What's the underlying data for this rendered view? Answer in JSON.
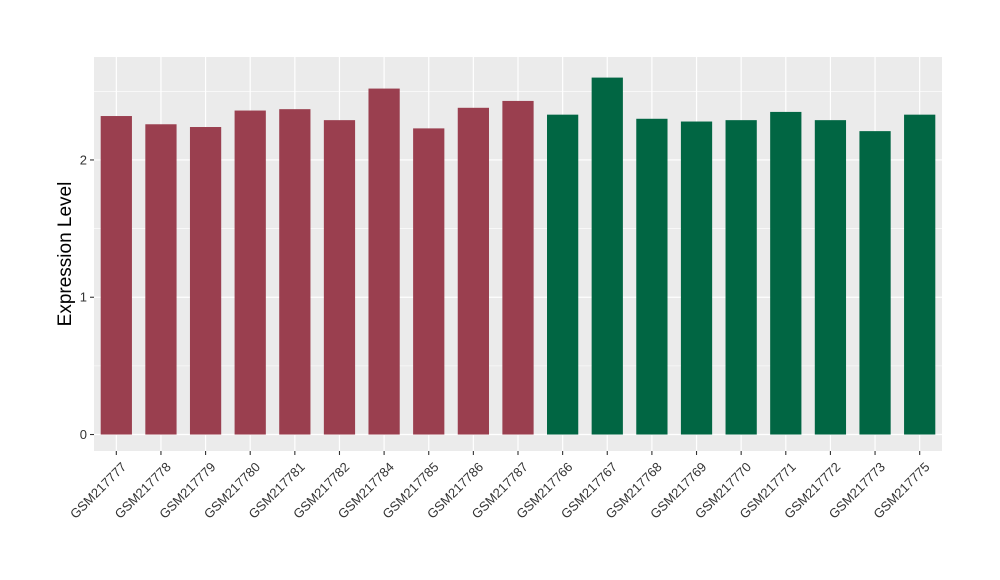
{
  "chart_data": {
    "type": "bar",
    "title": "",
    "xlabel": "",
    "ylabel": "Expression Level",
    "ylim": [
      -0.12,
      2.75
    ],
    "y_ticks": [
      0,
      1,
      2
    ],
    "grid": true,
    "legend": "none",
    "categories": [
      "GSM217777",
      "GSM217778",
      "GSM217779",
      "GSM217780",
      "GSM217781",
      "GSM217782",
      "GSM217784",
      "GSM217785",
      "GSM217786",
      "GSM217787",
      "GSM217766",
      "GSM217767",
      "GSM217768",
      "GSM217769",
      "GSM217770",
      "GSM217771",
      "GSM217772",
      "GSM217773",
      "GSM217775"
    ],
    "values": [
      2.32,
      2.26,
      2.24,
      2.36,
      2.37,
      2.29,
      2.52,
      2.23,
      2.38,
      2.43,
      2.33,
      2.6,
      2.3,
      2.28,
      2.29,
      2.35,
      2.29,
      2.21,
      2.33
    ],
    "groups": [
      0,
      0,
      0,
      0,
      0,
      0,
      0,
      0,
      0,
      0,
      1,
      1,
      1,
      1,
      1,
      1,
      1,
      1,
      1
    ],
    "group_colors": [
      "#9a3f4f",
      "#016643"
    ],
    "panel_background": "#ebebeb",
    "grid_color": "#ffffff"
  }
}
